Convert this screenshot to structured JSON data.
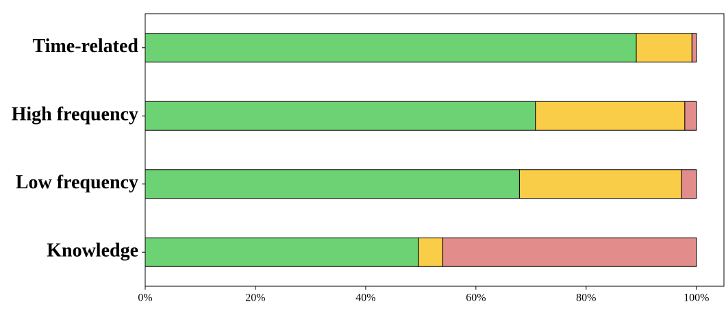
{
  "chart_data": {
    "type": "stacked_bar_horizontal",
    "categories": [
      "Time-related",
      "High frequency",
      "Low frequency",
      "Knowledge"
    ],
    "series": [
      {
        "color": "#6dd274",
        "values": [
          89.1,
          70.8,
          67.9,
          49.6
        ]
      },
      {
        "color": "#f9cd48",
        "values": [
          10.1,
          27.1,
          29.4,
          4.4
        ]
      },
      {
        "color": "#e28c8c",
        "values": [
          0.8,
          2.1,
          2.7,
          46.0
        ]
      }
    ],
    "xlim": [
      0,
      105
    ],
    "xticks": [
      {
        "value": 0,
        "label": "0%"
      },
      {
        "value": 20,
        "label": "20%"
      },
      {
        "value": 40,
        "label": "40%"
      },
      {
        "value": 60,
        "label": "60%"
      },
      {
        "value": 80,
        "label": "80%"
      },
      {
        "value": 100,
        "label": "100%"
      }
    ]
  }
}
